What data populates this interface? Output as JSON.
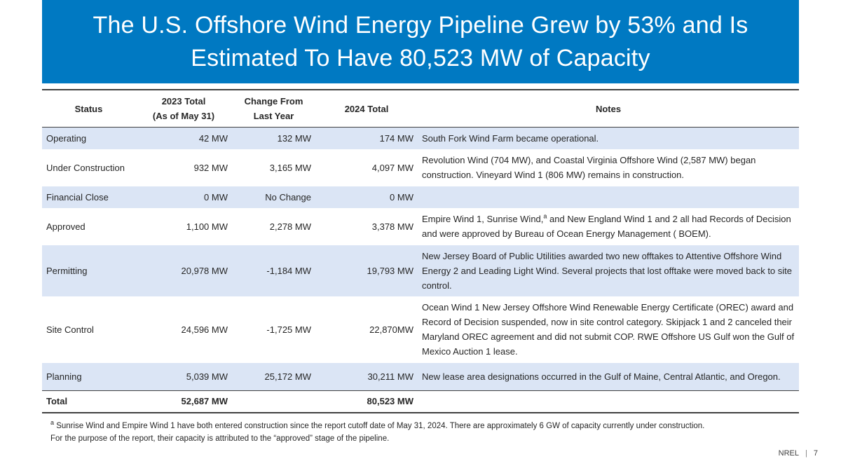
{
  "slide": {
    "title_line1": "The U.S. Offshore Wind Energy Pipeline Grew by 53% and Is",
    "title_line2": "Estimated To Have 80,523 MW of Capacity"
  },
  "table": {
    "headers": {
      "status": "Status",
      "total_2023_line1": "2023 Total",
      "total_2023_line2": "(As of May 31)",
      "change_line1": "Change From",
      "change_line2": "Last Year",
      "total_2024": "2024 Total",
      "notes": "Notes"
    },
    "rows": [
      {
        "status": "Operating",
        "total_2023": "42 MW",
        "change": "132 MW",
        "total_2024": "174 MW",
        "notes": "South Fork Wind Farm became operational."
      },
      {
        "status": "Under Construction",
        "total_2023": "932 MW",
        "change": "3,165 MW",
        "total_2024": "4,097 MW",
        "notes": "Revolution Wind (704 MW), and Coastal Virginia Offshore Wind (2,587 MW) began construction. Vineyard Wind 1 (806 MW) remains in construction."
      },
      {
        "status": "Financial Close",
        "total_2023": "0 MW",
        "change": "No Change",
        "total_2024": "0 MW",
        "notes": ""
      },
      {
        "status": "Approved",
        "total_2023": "1,100 MW",
        "change": "2,278 MW",
        "total_2024": "3,378 MW",
        "notes_pre": "Empire Wind 1, Sunrise Wind,",
        "notes_sup": "a",
        "notes_post": " and New England Wind 1 and 2 all had Records of Decision and were approved by Bureau of Ocean Energy Management ( BOEM)."
      },
      {
        "status": "Permitting",
        "total_2023": "20,978 MW",
        "change": "-1,184 MW",
        "total_2024": "19,793 MW",
        "notes": "New Jersey Board of Public Utilities awarded two new offtakes to Attentive Offshore Wind Energy 2 and Leading Light Wind. Several projects that lost offtake were moved back to site control."
      },
      {
        "status": "Site Control",
        "total_2023": "24,596 MW",
        "change": "-1,725 MW",
        "total_2024": "22,870MW",
        "notes": "Ocean Wind 1 New Jersey Offshore Wind Renewable Energy Certificate (OREC) award and Record of Decision suspended, now in site control category. Skipjack 1 and 2 canceled their Maryland OREC agreement and did not submit COP. RWE Offshore US Gulf won the Gulf of Mexico Auction 1 lease."
      },
      {
        "status": "Planning",
        "total_2023": "5,039 MW",
        "change": "25,172 MW",
        "total_2024": "30,211 MW",
        "notes": "New lease area designations occurred in the Gulf of Maine, Central Atlantic, and Oregon."
      }
    ],
    "total": {
      "status": "Total",
      "total_2023": "52,687 MW",
      "change": "",
      "total_2024": "80,523 MW",
      "notes": ""
    }
  },
  "footnote": {
    "marker": "a",
    "line1": " Sunrise Wind and Empire Wind 1 have both entered construction since the report cutoff date of May 31, 2024. There are approximately 6 GW of capacity currently under construction.",
    "line2": "For the purpose of the report, their capacity is attributed to the “approved” stage of the pipeline."
  },
  "footer": {
    "org": "NREL",
    "separator": "|",
    "page_number": "7"
  },
  "colors": {
    "banner": "#0079c2",
    "row_shade": "#dbe5f5"
  }
}
